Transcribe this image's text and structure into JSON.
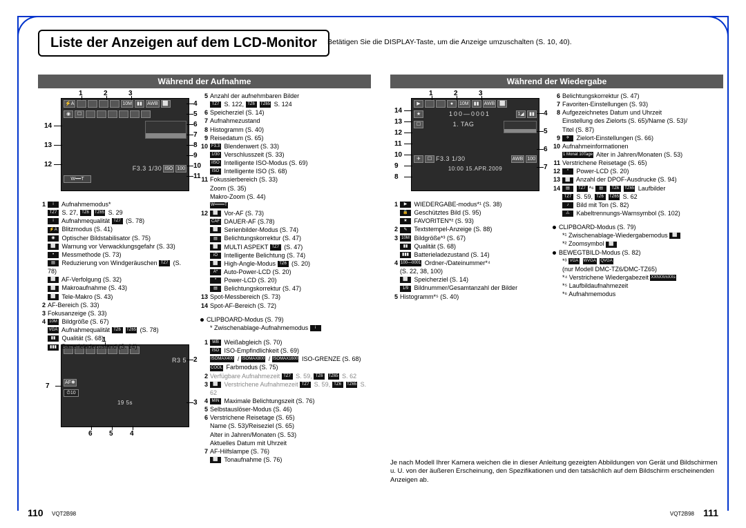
{
  "frame_color": "#0033cc",
  "title": "Liste der Anzeigen auf dem LCD-Monitor",
  "title_sub": "Betätigen Sie die DISPLAY-Taste, um die Anzeige umzuschalten (S. 10, 40).",
  "hdr_left": "Während der Aufnahme",
  "hdr_right": "Während der Wiedergabe",
  "lcd1": {
    "top_icons": [
      "⚡A",
      "",
      "",
      "",
      "",
      "10M",
      "▮▮",
      "AWB",
      "⬜"
    ],
    "row2": [
      "◉",
      "☐",
      "",
      "",
      "",
      "",
      "",
      ""
    ],
    "row3": [
      "",
      "",
      "",
      "   HISTO"
    ],
    "bottom": "F3.3   1/30",
    "end_icons": [
      "ISO",
      "100"
    ],
    "callouts_top": [
      "1",
      "2",
      "3"
    ],
    "callouts_right": [
      "4",
      "5",
      "6",
      "7",
      "8",
      "9",
      "10",
      "11"
    ],
    "callouts_left": [
      "14",
      "13",
      "12"
    ]
  },
  "lcd2": {
    "top_icons": [
      "▶",
      "",
      "",
      "●",
      "10M",
      "▮▮",
      "AWB",
      "⬜"
    ],
    "row2_text": "100—0001",
    "row2_right": [
      "1◢",
      "▮▮"
    ],
    "row3": "1. TAG",
    "bottom_icons": [
      "✈",
      "☐"
    ],
    "bottom_text": "F3.3 1/30",
    "time": "10:00  15.APR.2009",
    "callouts_top": [
      "1",
      "2",
      "3"
    ],
    "callouts_right": [
      "4",
      "5",
      "6",
      "7"
    ],
    "callouts_left": [
      "14",
      "13",
      "12",
      "11",
      "10",
      "9",
      "8"
    ]
  },
  "lcd3": {
    "top_icons": [
      "",
      "",
      "",
      "",
      "",
      "",
      ""
    ],
    "right_text": "R3 5",
    "mid": [
      "AF✱"
    ],
    "timer": "⏱10",
    "bottom": "19   5s",
    "callouts_top": [
      "1"
    ],
    "callouts_right": [
      "2",
      "3"
    ],
    "callouts_left": [
      "7"
    ],
    "callouts_bottom": [
      "6",
      "5",
      "4"
    ]
  },
  "left_col1": [
    {
      "n": "1",
      "t": "[i] Aufnahmemodus*"
    },
    {
      "sub": "[TZ7] S. 27, [TZ6] [TZ65] S. 29"
    },
    {
      "sub": "[i] Aufnahmequalität [TZ7] (S. 78)"
    },
    {
      "sub": "[⚡A] Blitzmodus (S. 41)"
    },
    {
      "sub": "[◉] Optischer Bildstabilisator (S. 75)"
    },
    {
      "sub": "[⬜] Warnung vor Verwacklungsgefahr (S. 33)"
    },
    {
      "sub": "[•] Messmethode (S. 73)"
    },
    {
      "sub": "[▤] Reduzierung von Windgeräuschen [TZ7] (S. 78)"
    },
    {
      "sub": "[⬜] AF-Verfolgung (S. 32)"
    },
    {
      "sub": "[⬜] Makroaufnahme (S. 43)"
    },
    {
      "sub": "[⬜] Tele-Makro (S. 43)"
    },
    {
      "n": "2",
      "t": "AF-Bereich (S. 33)"
    },
    {
      "n": "3",
      "t": "Fokusanzeige (S. 33)"
    },
    {
      "n": "4",
      "t": "[10M] Bildgröße (S. 67)"
    },
    {
      "sub": "[VGA] Aufnahmequalität [TZ6] [TZ65] (S. 78)"
    },
    {
      "sub": "[▮▮] Qualität (S. 68)"
    },
    {
      "sub": "[▮▮▮] Batterieladezustand (S. 14)"
    }
  ],
  "left_col2": [
    {
      "n": "5",
      "t": "Anzahl der aufnehmbaren Bilder"
    },
    {
      "sub": "[TZ7] S. 122, [TZ6] [TZ65] S. 124"
    },
    {
      "n": "6",
      "t": "Speicherziel (S. 14)"
    },
    {
      "n": "7",
      "t": "Aufnahmezustand"
    },
    {
      "n": "8",
      "t": "Histogramm (S. 40)"
    },
    {
      "n": "9",
      "t": "Reisedatum (S. 65)"
    },
    {
      "n": "10",
      "t": "[F3.3] Blendenwert (S. 33)"
    },
    {
      "sub": "[1/30] Verschlusszeit (S. 33)"
    },
    {
      "sub": "[iISO] Intelligente ISO-Modus (S. 69)"
    },
    {
      "sub": "[ISO] Intelligente ISO (S. 68)"
    },
    {
      "n": "11",
      "t": "Fokussierbereich (S. 33)"
    },
    {
      "sub": "Zoom (S. 35)"
    },
    {
      "sub": "Makro-Zoom (S. 44)"
    },
    {
      "sub": "[W━━━━T]"
    },
    {
      "n": "12",
      "t": "[⬜] Vor-AF (S. 73)"
    },
    {
      "sub": "[CAF] DAUER-AF (S.78)"
    },
    {
      "sub": "[⬜] Serienbilder-Modus (S. 74)"
    },
    {
      "sub": "[▤] Belichtungskorrektur (S. 47)"
    },
    {
      "sub": "[⬜] MULTI ASPEKT [TZ7] (S. 47)"
    },
    {
      "sub": "[iO] Intelligente Belichtung (S. 74)"
    },
    {
      "sub": "[⬜] High-Angle-Modus [TZ6] (S. 20)"
    },
    {
      "sub": "[A*] Auto-Power-LCD (S. 20)"
    },
    {
      "sub": "[*] Power-LCD (S. 20)"
    },
    {
      "sub": "[▤] Belichtungskorrektur (S. 47)"
    },
    {
      "n": "13",
      "t": "Spot-Messbereich (S. 73)"
    },
    {
      "n": "14",
      "t": "Spot-AF-Bereich (S. 72)"
    },
    {
      "blank": true
    },
    {
      "bul": "CLIPBOARD-Modus (S. 79)"
    },
    {
      "sub": "* Zwischenablage-Aufnahmemodus [i]"
    }
  ],
  "left_col3": [
    {
      "n": "1",
      "t": "[WB] Weißabgleich (S. 70)"
    },
    {
      "sub": "[ISO] ISO-Empfindlichkeit (S. 69)"
    },
    {
      "sub": "[ISOMAX400] / [ISOMAX800] / [ISOMAX1600] ISO-GRENZE (S. 68)"
    },
    {
      "sub": "[COOL] Farbmodus (S. 75)"
    },
    {
      "n": "2",
      "t": "Verfügbare Aufnahmezeit [TZ7] S. 59, [TZ6] [TZ65] S. 62",
      "grey": true
    },
    {
      "n": "3",
      "t": "[⬜] Verstrichene Aufnahmezeit [TZ7] S. 59, [TZ6] [TZ65] S. 62",
      "grey": true
    },
    {
      "n": "4",
      "t": "[MIN] Maximale Belichtungszeit (S. 76)"
    },
    {
      "n": "5",
      "t": "Selbstauslöser-Modus (S. 46)"
    },
    {
      "n": "6",
      "t": "Verstrichene Reisetage (S. 65)"
    },
    {
      "sub": "Name (S. 53)/Reiseziel (S. 65)"
    },
    {
      "sub": "Alter in Jahren/Monaten (S. 53)"
    },
    {
      "sub": "Aktuelles Datum mit Uhrzeit"
    },
    {
      "n": "7",
      "t": "AF-Hilfslampe (S. 76)"
    },
    {
      "sub": "[⬜] Tonaufnahme (S. 76)"
    }
  ],
  "right_col1": [
    {
      "n": "1",
      "t": "[▶] WIEDERGABE-modus*¹ (S. 38)"
    },
    {
      "sub": "[🔒] Geschütztes Bild (S. 95)"
    },
    {
      "sub": "[★] FAVORITEN*² (S. 93)"
    },
    {
      "n": "2",
      "t": "[✎] Textstempel-Anzeige (S. 88)"
    },
    {
      "n": "3",
      "t": "[10M] Bildgröße*³ (S. 67)"
    },
    {
      "sub": "[▮▮] Qualität (S. 68)"
    },
    {
      "sub": "[▮▮▮] Batterieladezustand (S. 14)"
    },
    {
      "n": "4",
      "t": "[100—0001] Ordner-/Dateinummer*⁴"
    },
    {
      "sub": "(S. 22, 38, 100)"
    },
    {
      "sub": "[⬜] Speicherziel (S. 14)"
    },
    {
      "sub": "[1/9] Bildnummer/Gesamtanzahl der Bilder"
    },
    {
      "n": "5",
      "t": "Histogramm*⁵ (S. 40)"
    }
  ],
  "right_col2": [
    {
      "n": "6",
      "t": "Belichtungskorrektur (S. 47)"
    },
    {
      "n": "7",
      "t": "Favoriten-Einstellungen (S. 93)"
    },
    {
      "n": "8",
      "t": "Aufgezeichnetes Datum und Uhrzeit"
    },
    {
      "sub": "Einstellung des Zielorts (S. 65)/Name (S. 53)/"
    },
    {
      "sub": "Titel (S. 87)"
    },
    {
      "n": "9",
      "t": "[✈] Zielort-Einstellungen (S. 66)"
    },
    {
      "n": "10",
      "t": "Aufnahmeinformationen"
    },
    {
      "sub": "[1 Monat 10Tage] Alter in Jahren/Monaten (S. 53)"
    },
    {
      "n": "11",
      "t": "Verstrichene Reisetage (S. 65)"
    },
    {
      "n": "12",
      "t": "[*] Power-LCD (S. 20)"
    },
    {
      "n": "13",
      "t": "[⬜] Anzahl der DPOF-Ausdrucke (S. 94)"
    },
    {
      "n": "14",
      "t": "[▤] [TZ7]*⁶ [▤] [TZ6] [TZ65] Laufbilder"
    },
    {
      "sub": "[TZ7] S. 59, [TZ6] [TZ65] S. 62"
    },
    {
      "sub": "[♪] Bild mit Ton (S. 82)"
    },
    {
      "sub": "[⚠] Kabeltrennungs-Warnsymbol (S. 102)"
    },
    {
      "blank": true
    },
    {
      "bul": "CLIPBOARD-Modus (S. 79)"
    },
    {
      "sub": "*¹ Zwischenablage-Wiedergabemodus [⬜]"
    },
    {
      "sub": "*² Zoomsymbol [⬜]"
    },
    {
      "bul": "BEWEGTBILD-Modus (S. 82)"
    },
    {
      "sub": "*³ [VGA] [WVGA] [QVGA]"
    },
    {
      "sub": "   (nur Modell DMC-TZ6/DMC-TZ65)"
    },
    {
      "sub": "*⁴ Verstrichene Wiedergabezeit [XXhXXmXXs]"
    },
    {
      "sub": "*⁵ Laufbildaufnahmezeit"
    },
    {
      "sub": "*⁶ Aufnahmemodus"
    }
  ],
  "footnote": "Je nach Modell Ihrer Kamera weichen die in dieser Anleitung gezeigten Abbildungen von Gerät und Bildschirmen u. U. von der äußeren Erscheinung, den Spezifikationen und den tatsächlich auf dem Bildschirm erscheinenden Anzeigen ab.",
  "page_left": "110",
  "page_right": "111",
  "vqt": "VQT2B98"
}
